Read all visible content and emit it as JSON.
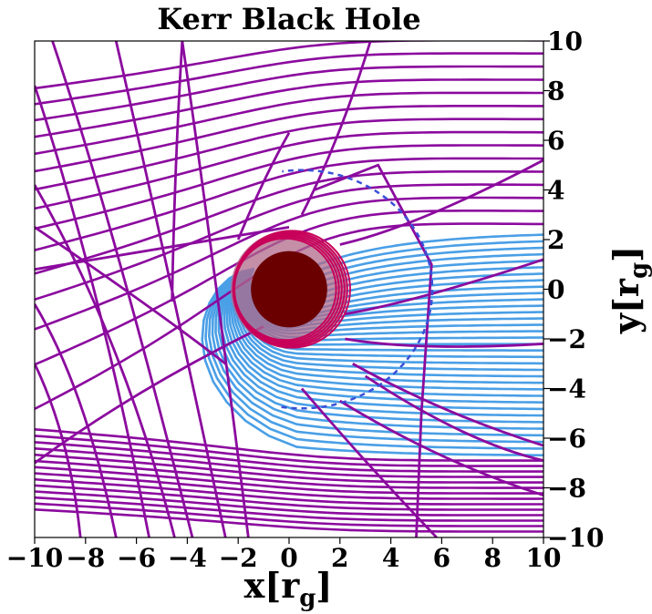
{
  "chart_data": {
    "type": "line",
    "title": "Kerr Black Hole",
    "xlabel": "x[r",
    "xlabel_sub": "g",
    "xlabel_close": "]",
    "ylabel": "y[r",
    "ylabel_sub": "g",
    "ylabel_close": "]",
    "xlim": [
      -10,
      10
    ],
    "ylim": [
      -10,
      10
    ],
    "xticks": [
      -10,
      -8,
      -6,
      -4,
      -2,
      0,
      2,
      4,
      6,
      8,
      10
    ],
    "yticks": [
      -10,
      -8,
      -6,
      -4,
      -2,
      0,
      2,
      4,
      6,
      8,
      10
    ],
    "xtick_labels": [
      "−10",
      "−8",
      "−6",
      "−4",
      "−2",
      "0",
      "2",
      "4",
      "6",
      "8",
      "10"
    ],
    "ytick_labels": [
      "−10",
      "−8",
      "−6",
      "−4",
      "−2",
      "0",
      "2",
      "4",
      "6",
      "8",
      "10"
    ],
    "yaxis_side": "right",
    "grid": false,
    "colors": {
      "geodesics_outer": "#8b0a9e",
      "geodesics_inner": "#4a9fe6",
      "ergosphere": "#c8005a",
      "horizon_fill": "#6b0000",
      "shadow": "#b06a8a"
    },
    "horizon_radius": 1.5,
    "ergosphere_radius": 2.0,
    "shadow_radius": 2.3
  }
}
